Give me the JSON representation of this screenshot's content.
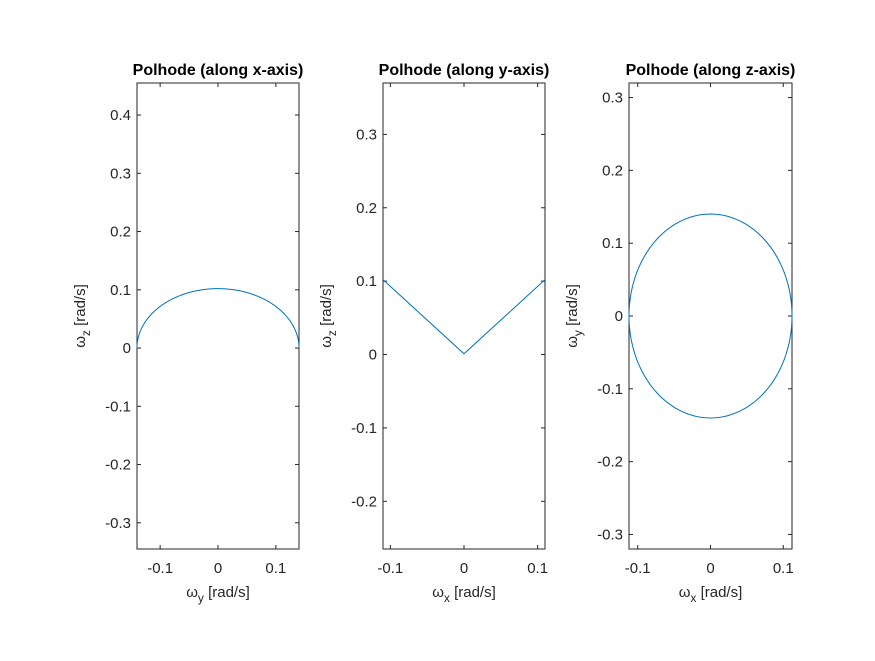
{
  "chart_data": [
    {
      "type": "line",
      "title": "Polhode (along x-axis)",
      "xlabel": {
        "symbol": "ω",
        "sub": "y",
        "unit": " [rad/s]"
      },
      "ylabel": {
        "symbol": "ω",
        "sub": "z",
        "unit": " [rad/s]"
      },
      "xlim": [
        -0.14,
        0.14
      ],
      "ylim": [
        -0.345,
        0.455
      ],
      "xticks": [
        -0.1,
        0,
        0.1
      ],
      "xtick_labels": [
        "-0.1",
        "0",
        "0.1"
      ],
      "yticks": [
        -0.3,
        -0.2,
        -0.1,
        0,
        0.1,
        0.2,
        0.3,
        0.4
      ],
      "ytick_labels": [
        "-0.3",
        "-0.2",
        "-0.1",
        "0",
        "0.1",
        "0.2",
        "0.3",
        "0.4"
      ],
      "grid": false,
      "series": [
        {
          "color": "#0072BD",
          "curve": "upper-semi-ellipse",
          "x_radius": 0.14,
          "y_radius": 0.102
        }
      ]
    },
    {
      "type": "line",
      "title": "Polhode (along y-axis)",
      "xlabel": {
        "symbol": "ω",
        "sub": "x",
        "unit": " [rad/s]"
      },
      "ylabel": {
        "symbol": "ω",
        "sub": "z",
        "unit": " [rad/s]"
      },
      "xlim": [
        -0.11,
        0.11
      ],
      "ylim": [
        -0.265,
        0.37
      ],
      "xticks": [
        -0.1,
        0,
        0.1
      ],
      "xtick_labels": [
        "-0.1",
        "0",
        "0.1"
      ],
      "yticks": [
        -0.2,
        -0.1,
        0,
        0.1,
        0.2,
        0.3
      ],
      "ytick_labels": [
        "-0.2",
        "-0.1",
        "0",
        "0.1",
        "0.2",
        "0.3"
      ],
      "grid": false,
      "series": [
        {
          "color": "#0072BD",
          "x": [
            -0.11,
            0,
            0.11
          ],
          "y": [
            0.102,
            0.001,
            0.102
          ]
        }
      ]
    },
    {
      "type": "line",
      "title": "Polhode (along z-axis)",
      "xlabel": {
        "symbol": "ω",
        "sub": "x",
        "unit": " [rad/s]"
      },
      "ylabel": {
        "symbol": "ω",
        "sub": "y",
        "unit": " [rad/s]"
      },
      "xlim": [
        -0.112,
        0.112
      ],
      "ylim": [
        -0.32,
        0.32
      ],
      "xticks": [
        -0.1,
        0,
        0.1
      ],
      "xtick_labels": [
        "-0.1",
        "0",
        "0.1"
      ],
      "yticks": [
        -0.3,
        -0.2,
        -0.1,
        0,
        0.1,
        0.2,
        0.3
      ],
      "ytick_labels": [
        "-0.3",
        "-0.2",
        "-0.1",
        "0",
        "0.1",
        "0.2",
        "0.3"
      ],
      "grid": false,
      "series": [
        {
          "color": "#0072BD",
          "curve": "ellipse",
          "x_radius": 0.112,
          "y_radius": 0.14
        }
      ]
    }
  ]
}
